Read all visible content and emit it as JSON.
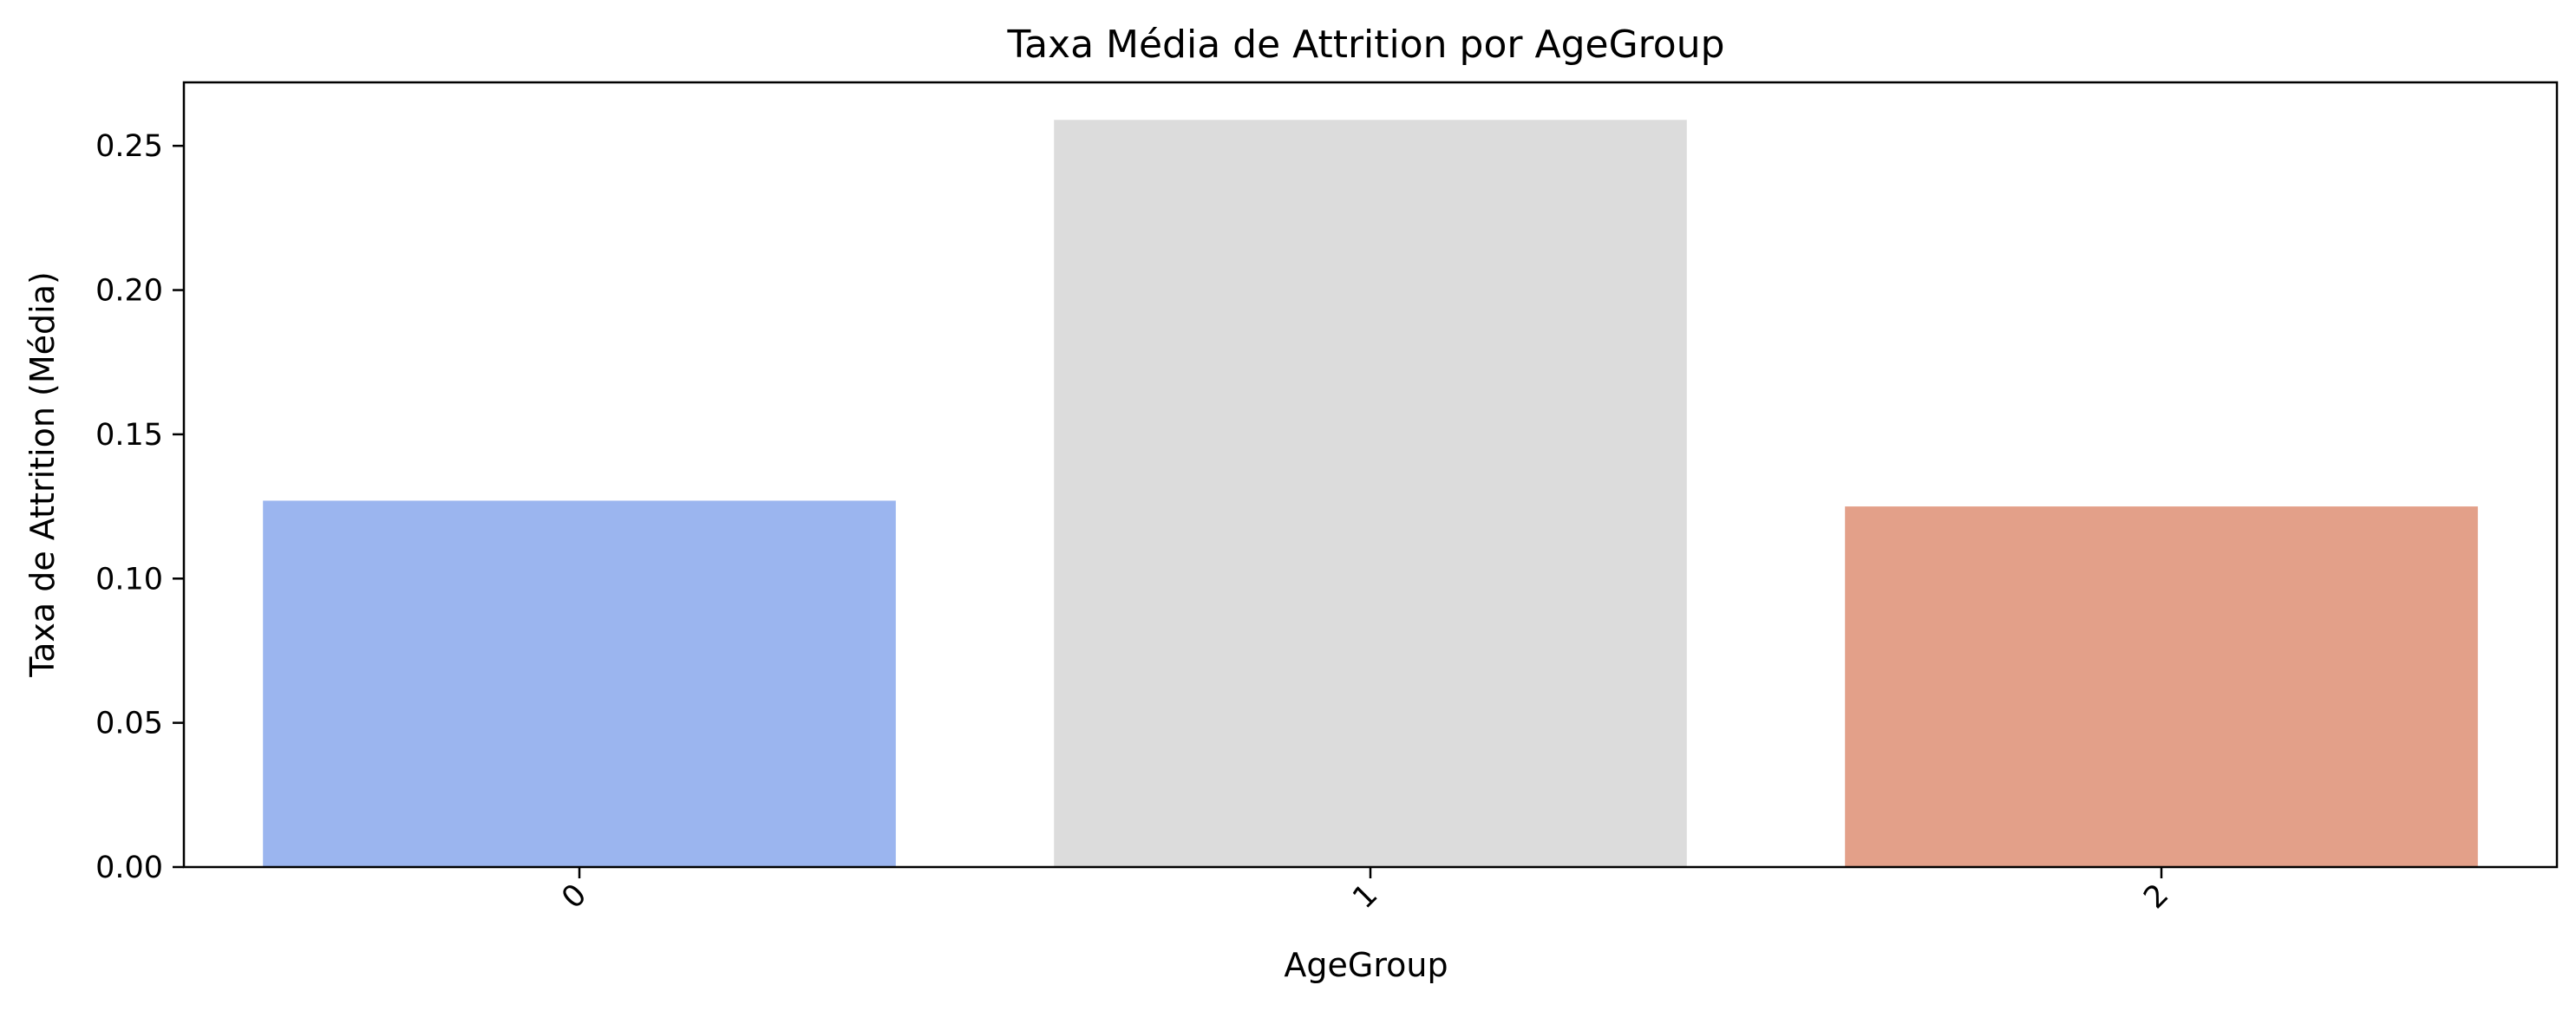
{
  "chart_data": {
    "type": "bar",
    "title": "Taxa Média de Attrition por AgeGroup",
    "xlabel": "AgeGroup",
    "ylabel": "Taxa de Attrition (Média)",
    "categories": [
      "0",
      "1",
      "2"
    ],
    "values": [
      0.127,
      0.259,
      0.125
    ],
    "colors": [
      "#9bb5ef",
      "#dcdcdc",
      "#e3a089"
    ],
    "ylim": [
      0,
      0.272
    ],
    "yticks": [
      0.0,
      0.05,
      0.1,
      0.15,
      0.2,
      0.25
    ],
    "ytick_labels": [
      "0.00",
      "0.05",
      "0.10",
      "0.15",
      "0.20",
      "0.25"
    ],
    "xtick_rotation": 45,
    "grid": false,
    "legend": "none"
  }
}
